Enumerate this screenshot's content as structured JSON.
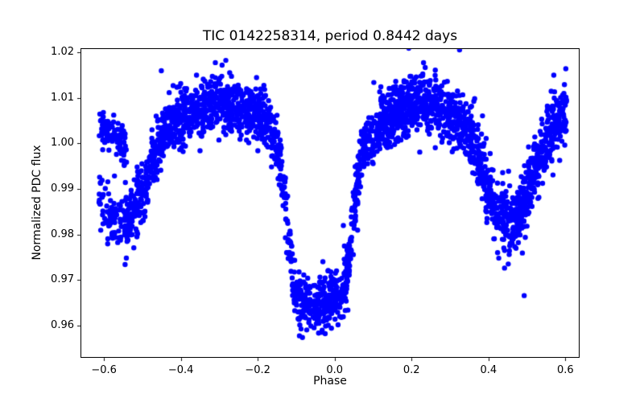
{
  "chart_data": {
    "type": "scatter",
    "title": "TIC 0142258314, period 0.8442 days",
    "xlabel": "Phase",
    "ylabel": "Normalized PDC flux",
    "grid": false,
    "legend": null,
    "marker": {
      "color": "#0000ff",
      "radius_px": 3.2
    },
    "xlim": [
      -0.661,
      0.637
    ],
    "ylim": [
      0.9529,
      1.0209
    ],
    "x_tick_values": [
      -0.6,
      -0.4,
      -0.2,
      0.0,
      0.2,
      0.4,
      0.6
    ],
    "x_tick_labels": [
      "−0.6",
      "−0.4",
      "−0.2",
      "0.0",
      "0.2",
      "0.4",
      "0.6"
    ],
    "y_tick_values": [
      0.96,
      0.97,
      0.98,
      0.99,
      1.0,
      1.01,
      1.02
    ],
    "y_tick_labels": [
      "0.96",
      "0.97",
      "0.98",
      "0.99",
      "1.00",
      "1.01",
      "1.02"
    ],
    "n_points": 3000,
    "phase_range": [
      -0.615,
      0.603
    ],
    "seed": 42,
    "scatter_sigma": 0.0032,
    "eclipse_bottom_range": [
      -0.105,
      0.025
    ],
    "eclipse_bottom_sigma": 0.0028,
    "outlier_fraction": 0.015,
    "outlier_sigma_multiplier": 2.5,
    "primary_eclipse": {
      "center_phase": -0.04,
      "bottom_flux": 0.9645,
      "depth": 0.044
    },
    "secondary_eclipse": {
      "center_phase": 0.455,
      "bottom_flux": 0.9825,
      "depth": 0.026
    },
    "out_of_eclipse_max_flux": 1.0088,
    "mean_curve": [
      [
        -0.615,
        0.988
      ],
      [
        -0.59,
        0.9845
      ],
      [
        -0.55,
        0.9825
      ],
      [
        -0.525,
        0.9845
      ],
      [
        -0.5,
        0.989
      ],
      [
        -0.48,
        0.9935
      ],
      [
        -0.465,
        0.998
      ],
      [
        -0.45,
        1.0015
      ],
      [
        -0.42,
        1.0045
      ],
      [
        -0.38,
        1.0065
      ],
      [
        -0.32,
        1.0085
      ],
      [
        -0.27,
        1.0088
      ],
      [
        -0.22,
        1.0075
      ],
      [
        -0.18,
        1.0045
      ],
      [
        -0.155,
        1.0005
      ],
      [
        -0.145,
        0.998
      ],
      [
        -0.13,
        0.988
      ],
      [
        -0.115,
        0.975
      ],
      [
        -0.105,
        0.9675
      ],
      [
        -0.09,
        0.9655
      ],
      [
        -0.05,
        0.9645
      ],
      [
        -0.01,
        0.9655
      ],
      [
        0.02,
        0.9665
      ],
      [
        0.03,
        0.97
      ],
      [
        0.045,
        0.98
      ],
      [
        0.06,
        0.9925
      ],
      [
        0.07,
        0.998
      ],
      [
        0.085,
        1.0005
      ],
      [
        0.11,
        1.0035
      ],
      [
        0.15,
        1.0065
      ],
      [
        0.2,
        1.0085
      ],
      [
        0.25,
        1.0087
      ],
      [
        0.3,
        1.0072
      ],
      [
        0.34,
        1.0035
      ],
      [
        0.37,
        0.998
      ],
      [
        0.39,
        0.992
      ],
      [
        0.41,
        0.9865
      ],
      [
        0.435,
        0.9835
      ],
      [
        0.46,
        0.9825
      ],
      [
        0.48,
        0.9845
      ],
      [
        0.5,
        0.9885
      ],
      [
        0.52,
        0.9935
      ],
      [
        0.545,
        0.999
      ],
      [
        0.57,
        1.0035
      ],
      [
        0.603,
        1.0065
      ]
    ],
    "left_edge_upper_band": {
      "range": [
        -0.615,
        -0.54
      ],
      "fraction": 0.5,
      "sigma": 0.0022,
      "points": [
        [
          -0.615,
          1.0035
        ],
        [
          -0.575,
          1.0025
        ],
        [
          -0.54,
          0.998
        ]
      ]
    }
  }
}
